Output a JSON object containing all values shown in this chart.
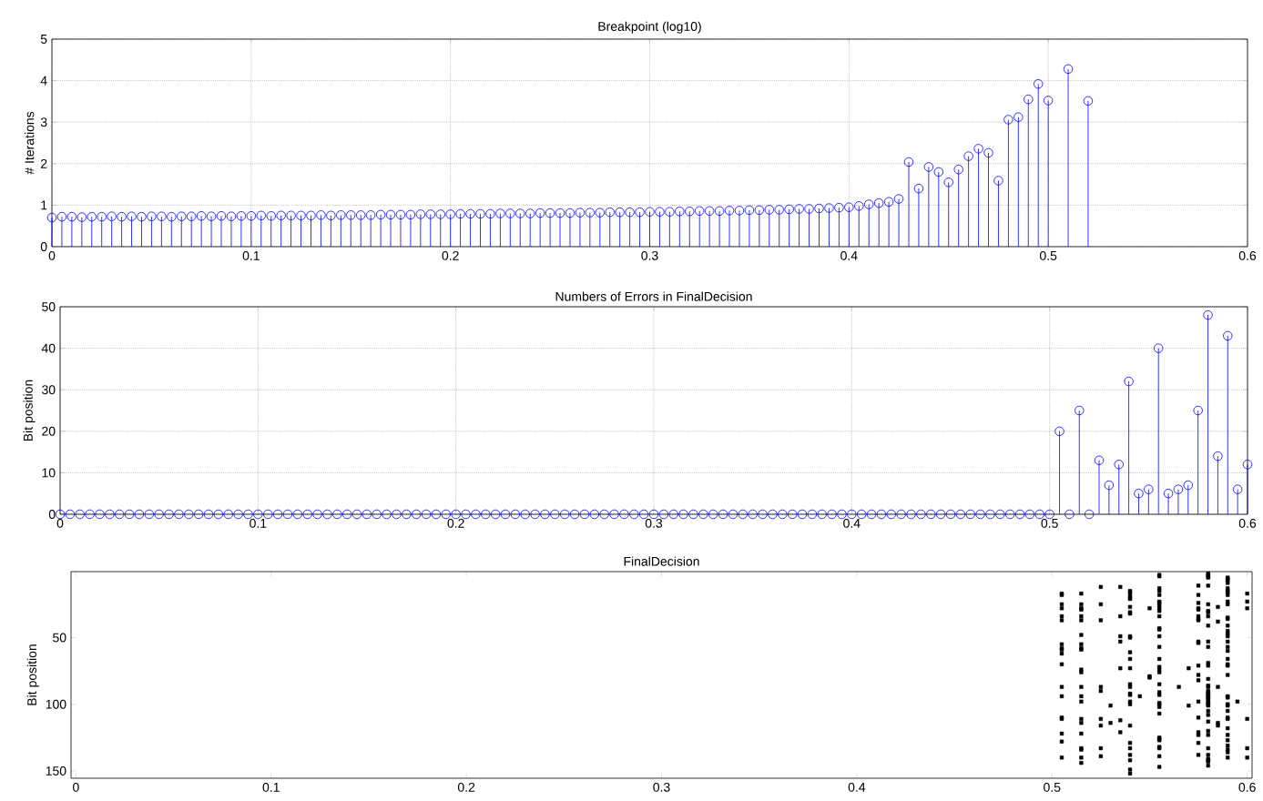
{
  "chart_data": [
    {
      "type": "lollipop",
      "title": "Breakpoint (log10)",
      "ylabel": "# Iterations",
      "color": "#0000ff",
      "marker": "circle",
      "grid": true,
      "xlim": [
        0,
        0.6
      ],
      "ylim": [
        0,
        5
      ],
      "xticks": [
        0,
        0.1,
        0.2,
        0.3,
        0.4,
        0.5,
        0.6
      ],
      "yticks": [
        0,
        1,
        2,
        3,
        4,
        5
      ],
      "x": [
        0,
        0.005,
        0.01,
        0.015,
        0.02,
        0.025,
        0.03,
        0.035,
        0.04,
        0.045,
        0.05,
        0.055,
        0.06,
        0.065,
        0.07,
        0.075,
        0.08,
        0.085,
        0.09,
        0.095,
        0.1,
        0.105,
        0.11,
        0.115,
        0.12,
        0.125,
        0.13,
        0.135,
        0.14,
        0.145,
        0.15,
        0.155,
        0.16,
        0.165,
        0.17,
        0.175,
        0.18,
        0.185,
        0.19,
        0.195,
        0.2,
        0.205,
        0.21,
        0.215,
        0.22,
        0.225,
        0.23,
        0.235,
        0.24,
        0.245,
        0.25,
        0.255,
        0.26,
        0.265,
        0.27,
        0.275,
        0.28,
        0.285,
        0.29,
        0.295,
        0.3,
        0.305,
        0.31,
        0.315,
        0.32,
        0.325,
        0.33,
        0.335,
        0.34,
        0.345,
        0.35,
        0.355,
        0.36,
        0.365,
        0.37,
        0.375,
        0.38,
        0.385,
        0.39,
        0.395,
        0.4,
        0.405,
        0.41,
        0.415,
        0.42,
        0.425,
        0.43,
        0.435,
        0.44,
        0.445,
        0.45,
        0.455,
        0.46,
        0.465,
        0.47,
        0.475,
        0.48,
        0.485,
        0.49,
        0.495,
        0.5,
        0.51,
        0.52
      ],
      "values": [
        0.7,
        0.72,
        0.72,
        0.71,
        0.72,
        0.72,
        0.73,
        0.72,
        0.73,
        0.72,
        0.73,
        0.73,
        0.72,
        0.73,
        0.73,
        0.74,
        0.73,
        0.74,
        0.73,
        0.74,
        0.74,
        0.75,
        0.74,
        0.75,
        0.75,
        0.75,
        0.75,
        0.76,
        0.75,
        0.76,
        0.76,
        0.76,
        0.76,
        0.77,
        0.77,
        0.77,
        0.77,
        0.78,
        0.78,
        0.78,
        0.78,
        0.79,
        0.79,
        0.79,
        0.79,
        0.8,
        0.8,
        0.8,
        0.8,
        0.81,
        0.81,
        0.81,
        0.81,
        0.82,
        0.82,
        0.82,
        0.83,
        0.83,
        0.83,
        0.83,
        0.84,
        0.84,
        0.84,
        0.85,
        0.85,
        0.86,
        0.86,
        0.86,
        0.87,
        0.87,
        0.88,
        0.88,
        0.89,
        0.89,
        0.9,
        0.91,
        0.91,
        0.92,
        0.93,
        0.94,
        0.95,
        0.98,
        1.02,
        1.05,
        1.08,
        1.15,
        2.04,
        1.4,
        1.92,
        1.8,
        1.55,
        1.86,
        2.18,
        2.36,
        2.26,
        1.59,
        3.06,
        3.12,
        3.55,
        3.92,
        3.52,
        4.28,
        3.51
      ]
    },
    {
      "type": "lollipop",
      "title": "Numbers of Errors in FinalDecision",
      "ylabel": "Bit position",
      "color": "#0000ff",
      "marker": "circle",
      "grid": true,
      "xlim": [
        0,
        0.6
      ],
      "ylim": [
        0,
        50
      ],
      "xticks": [
        0,
        0.1,
        0.2,
        0.3,
        0.4,
        0.5,
        0.6
      ],
      "yticks": [
        0,
        10,
        20,
        30,
        40,
        50
      ],
      "x": [
        0,
        0.005,
        0.01,
        0.015,
        0.02,
        0.025,
        0.03,
        0.035,
        0.04,
        0.045,
        0.05,
        0.055,
        0.06,
        0.065,
        0.07,
        0.075,
        0.08,
        0.085,
        0.09,
        0.095,
        0.1,
        0.105,
        0.11,
        0.115,
        0.12,
        0.125,
        0.13,
        0.135,
        0.14,
        0.145,
        0.15,
        0.155,
        0.16,
        0.165,
        0.17,
        0.175,
        0.18,
        0.185,
        0.19,
        0.195,
        0.2,
        0.205,
        0.21,
        0.215,
        0.22,
        0.225,
        0.23,
        0.235,
        0.24,
        0.245,
        0.25,
        0.255,
        0.26,
        0.265,
        0.27,
        0.275,
        0.28,
        0.285,
        0.29,
        0.295,
        0.3,
        0.305,
        0.31,
        0.315,
        0.32,
        0.325,
        0.33,
        0.335,
        0.34,
        0.345,
        0.35,
        0.355,
        0.36,
        0.365,
        0.37,
        0.375,
        0.38,
        0.385,
        0.39,
        0.395,
        0.4,
        0.405,
        0.41,
        0.415,
        0.42,
        0.425,
        0.43,
        0.435,
        0.44,
        0.445,
        0.45,
        0.455,
        0.46,
        0.465,
        0.47,
        0.475,
        0.48,
        0.485,
        0.49,
        0.495,
        0.5,
        0.505,
        0.51,
        0.515,
        0.52,
        0.525,
        0.53,
        0.535,
        0.54,
        0.545,
        0.55,
        0.555,
        0.56,
        0.565,
        0.57,
        0.575,
        0.58,
        0.585,
        0.59,
        0.595,
        0.6
      ],
      "values": [
        0,
        0,
        0,
        0,
        0,
        0,
        0,
        0,
        0,
        0,
        0,
        0,
        0,
        0,
        0,
        0,
        0,
        0,
        0,
        0,
        0,
        0,
        0,
        0,
        0,
        0,
        0,
        0,
        0,
        0,
        0,
        0,
        0,
        0,
        0,
        0,
        0,
        0,
        0,
        0,
        0,
        0,
        0,
        0,
        0,
        0,
        0,
        0,
        0,
        0,
        0,
        0,
        0,
        0,
        0,
        0,
        0,
        0,
        0,
        0,
        0,
        0,
        0,
        0,
        0,
        0,
        0,
        0,
        0,
        0,
        0,
        0,
        0,
        0,
        0,
        0,
        0,
        0,
        0,
        0,
        0,
        0,
        0,
        0,
        0,
        0,
        0,
        0,
        0,
        0,
        0,
        0,
        0,
        0,
        0,
        0,
        0,
        0,
        0,
        0,
        0,
        20,
        0,
        25,
        0,
        13,
        7,
        12,
        32,
        5,
        6,
        40,
        5,
        6,
        7,
        25,
        48,
        14,
        43,
        6,
        12
      ]
    },
    {
      "type": "scatter",
      "title": "FinalDecision",
      "ylabel": "Bit position",
      "color": "#000000",
      "marker": "square",
      "xlim": [
        -0.0025,
        0.6025
      ],
      "ylim": [
        155.5,
        0.5
      ],
      "xticks": [
        0,
        0.1,
        0.2,
        0.3,
        0.4,
        0.5,
        0.6
      ],
      "yticks": [
        50,
        100,
        150
      ],
      "x": [
        0.505,
        0.505,
        0.505,
        0.505,
        0.505,
        0.505,
        0.505,
        0.505,
        0.505,
        0.505,
        0.505,
        0.505,
        0.505,
        0.505,
        0.505,
        0.505,
        0.505,
        0.505,
        0.515,
        0.515,
        0.515,
        0.515,
        0.515,
        0.515,
        0.515,
        0.515,
        0.515,
        0.515,
        0.515,
        0.515,
        0.515,
        0.515,
        0.515,
        0.515,
        0.515,
        0.515,
        0.515,
        0.515,
        0.515,
        0.515,
        0.525,
        0.525,
        0.525,
        0.525,
        0.525,
        0.525,
        0.525,
        0.525,
        0.525,
        0.53,
        0.53,
        0.535,
        0.535,
        0.535,
        0.535,
        0.535,
        0.535,
        0.535,
        0.54,
        0.54,
        0.54,
        0.54,
        0.54,
        0.54,
        0.54,
        0.54,
        0.54,
        0.54,
        0.54,
        0.54,
        0.54,
        0.54,
        0.54,
        0.54,
        0.54,
        0.54,
        0.54,
        0.54,
        0.54,
        0.54,
        0.54,
        0.54,
        0.54,
        0.54,
        0.545,
        0.55,
        0.55,
        0.55,
        0.555,
        0.555,
        0.555,
        0.555,
        0.555,
        0.555,
        0.555,
        0.555,
        0.555,
        0.555,
        0.555,
        0.555,
        0.555,
        0.555,
        0.555,
        0.555,
        0.555,
        0.555,
        0.555,
        0.555,
        0.555,
        0.555,
        0.555,
        0.555,
        0.555,
        0.555,
        0.555,
        0.555,
        0.555,
        0.555,
        0.555,
        0.555,
        0.555,
        0.565,
        0.57,
        0.57,
        0.575,
        0.575,
        0.575,
        0.575,
        0.575,
        0.575,
        0.575,
        0.575,
        0.575,
        0.575,
        0.575,
        0.575,
        0.575,
        0.575,
        0.575,
        0.575,
        0.575,
        0.575,
        0.575,
        0.58,
        0.58,
        0.58,
        0.58,
        0.58,
        0.58,
        0.58,
        0.58,
        0.58,
        0.58,
        0.58,
        0.58,
        0.58,
        0.58,
        0.58,
        0.58,
        0.58,
        0.58,
        0.58,
        0.58,
        0.58,
        0.58,
        0.58,
        0.58,
        0.58,
        0.58,
        0.58,
        0.58,
        0.58,
        0.58,
        0.58,
        0.58,
        0.58,
        0.58,
        0.58,
        0.58,
        0.58,
        0.58,
        0.58,
        0.585,
        0.585,
        0.585,
        0.585,
        0.585,
        0.59,
        0.59,
        0.59,
        0.59,
        0.59,
        0.59,
        0.59,
        0.59,
        0.59,
        0.59,
        0.59,
        0.59,
        0.59,
        0.59,
        0.59,
        0.59,
        0.59,
        0.59,
        0.59,
        0.59,
        0.59,
        0.59,
        0.59,
        0.59,
        0.59,
        0.59,
        0.59,
        0.59,
        0.59,
        0.59,
        0.59,
        0.59,
        0.59,
        0.59,
        0.59,
        0.59,
        0.59,
        0.595,
        0.6,
        0.6,
        0.6,
        0.6,
        0.6,
        0.6
      ],
      "values": [
        17,
        18,
        25,
        28,
        34,
        37,
        55,
        58,
        59,
        62,
        70,
        87,
        94,
        110,
        111,
        122,
        128,
        140,
        17,
        25,
        28,
        29,
        34,
        37,
        48,
        55,
        58,
        59,
        74,
        76,
        87,
        94,
        98,
        111,
        114,
        122,
        133,
        134,
        140,
        144,
        12,
        25,
        37,
        87,
        90,
        111,
        116,
        133,
        139,
        101,
        114,
        12,
        34,
        49,
        53,
        73,
        112,
        121,
        15,
        16,
        18,
        20,
        21,
        27,
        31,
        32,
        49,
        50,
        61,
        66,
        73,
        85,
        87,
        92,
        93,
        98,
        100,
        116,
        129,
        133,
        138,
        142,
        149,
        152,
        94,
        28,
        79,
        80,
        3,
        4,
        13,
        15,
        18,
        23,
        24,
        26,
        28,
        30,
        34,
        43,
        44,
        49,
        57,
        66,
        72,
        74,
        76,
        85,
        91,
        93,
        99,
        100,
        102,
        107,
        125,
        126,
        127,
        132,
        133,
        139,
        147,
        87,
        73,
        101,
        11,
        18,
        24,
        28,
        29,
        34,
        36,
        37,
        53,
        54,
        71,
        78,
        82,
        98,
        110,
        121,
        123,
        129,
        138,
        2,
        3,
        4,
        5,
        11,
        25,
        30,
        31,
        34,
        41,
        53,
        57,
        69,
        71,
        81,
        86,
        87,
        90,
        91,
        92,
        93,
        94,
        95,
        96,
        98,
        99,
        100,
        101,
        105,
        108,
        113,
        120,
        123,
        133,
        138,
        141,
        142,
        143,
        146,
        27,
        38,
        87,
        114,
        116,
        5,
        6,
        7,
        9,
        13,
        15,
        16,
        18,
        23,
        25,
        35,
        36,
        41,
        45,
        47,
        49,
        53,
        57,
        60,
        66,
        70,
        71,
        78,
        94,
        95,
        100,
        101,
        105,
        110,
        111,
        118,
        123,
        127,
        131,
        134,
        136,
        140,
        98,
        17,
        23,
        28,
        111,
        133,
        140
      ]
    }
  ]
}
